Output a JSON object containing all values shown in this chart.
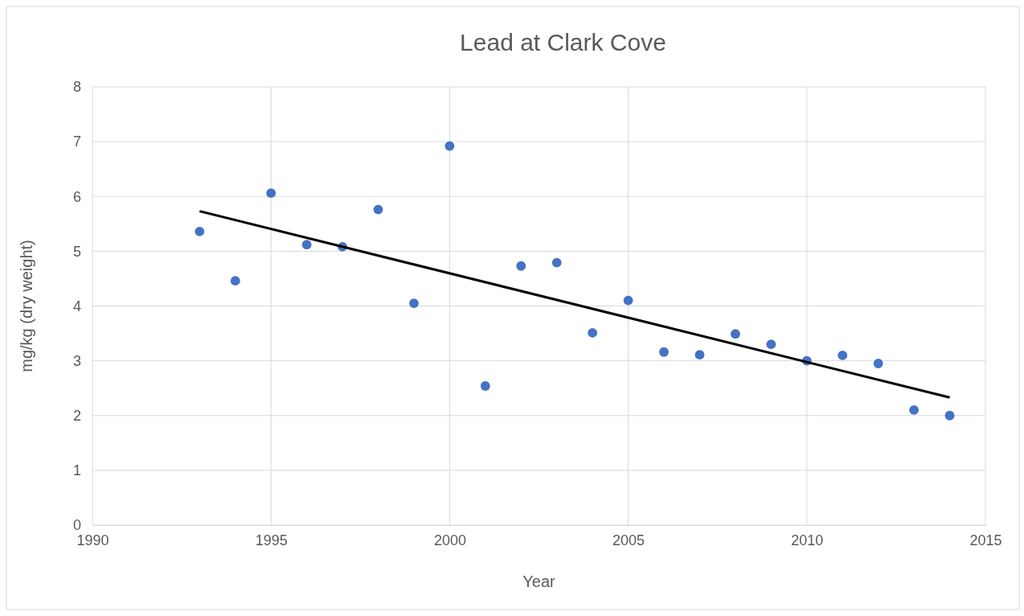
{
  "chart_data": {
    "type": "scatter",
    "title": "Lead at Clark Cove",
    "xlabel": "Year",
    "ylabel": "mg/kg (dry weight)",
    "x": [
      1993,
      1994,
      1995,
      1996,
      1997,
      1998,
      1999,
      2000,
      2001,
      2002,
      2003,
      2004,
      2005,
      2006,
      2007,
      2008,
      2009,
      2010,
      2011,
      2012,
      2013,
      2014
    ],
    "series": [
      {
        "marker": "circle",
        "color": "#4472c4",
        "values": [
          5.36,
          4.46,
          6.06,
          5.12,
          5.08,
          5.76,
          4.05,
          6.92,
          2.54,
          4.73,
          4.79,
          3.51,
          4.1,
          3.16,
          3.11,
          3.49,
          3.3,
          3.0,
          3.1,
          2.95,
          2.1,
          2.0
        ]
      },
      {
        "type": "line",
        "marker": "none",
        "color": "#000000",
        "x": [
          1993,
          2014
        ],
        "values": [
          5.73,
          2.33
        ]
      }
    ],
    "xlim": [
      1990,
      2015
    ],
    "xticks": [
      1990,
      1995,
      2000,
      2005,
      2010,
      2015
    ],
    "ylim": [
      0,
      8
    ],
    "yticks": [
      0,
      1,
      2,
      3,
      4,
      5,
      6,
      7,
      8
    ],
    "grid": true,
    "line_style": "solid"
  }
}
